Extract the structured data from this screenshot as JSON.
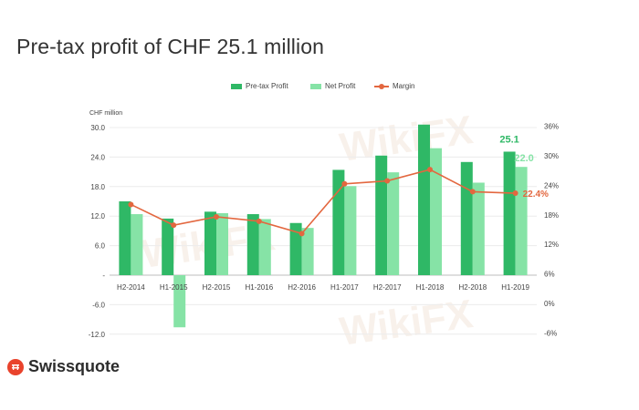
{
  "chart_data": {
    "type": "bar",
    "title": "Pre-tax profit of CHF 25.1 million",
    "ylabel": "CHF million",
    "categories": [
      "H2-2014",
      "H1-2015",
      "H2-2015",
      "H1-2016",
      "H2-2016",
      "H1-2017",
      "H2-2017",
      "H1-2018",
      "H2-2018",
      "H1-2019"
    ],
    "series": [
      {
        "name": "Pre-tax Profit",
        "type": "bar",
        "color": "#2fb866",
        "values": [
          15.0,
          11.5,
          12.9,
          12.4,
          10.6,
          21.4,
          24.3,
          30.6,
          23.0,
          25.1
        ]
      },
      {
        "name": "Net Profit",
        "type": "bar",
        "color": "#86e3a6",
        "values": [
          12.4,
          -10.6,
          12.6,
          11.4,
          9.6,
          18.1,
          20.9,
          25.8,
          18.8,
          22.0
        ]
      },
      {
        "name": "Margin",
        "type": "line",
        "color": "#e3673f",
        "values": [
          20.1,
          15.9,
          17.6,
          16.7,
          14.2,
          24.3,
          24.9,
          27.2,
          22.7,
          22.4
        ]
      }
    ],
    "ylim": [
      -12,
      30
    ],
    "yticks": [
      {
        "value": 30,
        "label": "30.0"
      },
      {
        "value": 24,
        "label": "24.0"
      },
      {
        "value": 18,
        "label": "18.0"
      },
      {
        "value": 12,
        "label": "12.0"
      },
      {
        "value": 6,
        "label": "6.0"
      },
      {
        "value": 0,
        "label": "-"
      },
      {
        "value": -6,
        "label": "-6.0"
      },
      {
        "value": -12,
        "label": "-12.0"
      }
    ],
    "y2ticks": [
      {
        "value": 36,
        "label": "36%"
      },
      {
        "value": 30,
        "label": "30%"
      },
      {
        "value": 24,
        "label": "24%"
      },
      {
        "value": 18,
        "label": "18%"
      },
      {
        "value": 12,
        "label": "12%"
      },
      {
        "value": 6,
        "label": "6%"
      },
      {
        "value": 0,
        "label": "0%"
      },
      {
        "value": -6,
        "label": "-6%"
      }
    ],
    "annotations": [
      {
        "label": "25.1",
        "category": "H1-2019",
        "series": "Pre-tax Profit",
        "color": "#2fb866"
      },
      {
        "label": "22.0",
        "category": "H1-2019",
        "series": "Net Profit",
        "color": "#86e3a6"
      },
      {
        "label": "22.4%",
        "category": "H1-2019",
        "series": "Margin",
        "color": "#e3673f"
      }
    ],
    "grid": true,
    "legend": "top-center"
  },
  "legend": {
    "pretax": "Pre-tax Profit",
    "net": "Net Profit",
    "margin": "Margin"
  },
  "watermark": "WikiFX",
  "brand": {
    "name": "Swissquote"
  }
}
